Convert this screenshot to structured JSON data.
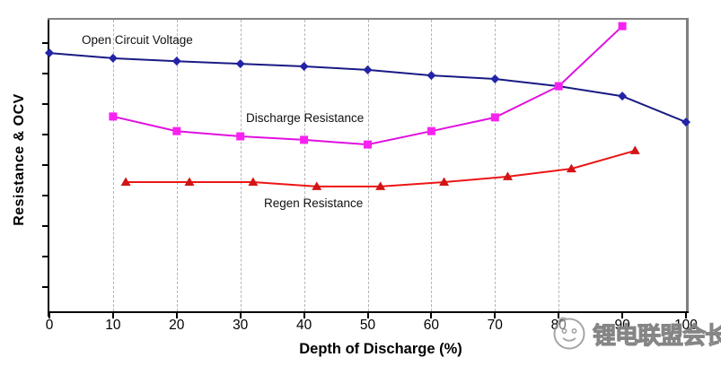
{
  "chart_data": {
    "type": "line",
    "title": "",
    "xlabel": "Depth of Discharge (%)",
    "ylabel": "Resistance & OCV",
    "xlim": [
      0,
      100
    ],
    "ylim": [
      0,
      100
    ],
    "x_ticks": [
      0,
      10,
      20,
      30,
      40,
      50,
      60,
      70,
      80,
      90,
      100
    ],
    "y_axis_numeric_labels": false,
    "y_units": "relative scale: percent of y-axis height above axis bottom (axis has unlabeled tick marks)",
    "grid": "vertical dashed gridlines only",
    "gridlines_at": [
      10,
      20,
      30,
      40,
      50,
      60,
      70,
      80
    ],
    "legend_position": "inline text annotations next to each curve",
    "series": [
      {
        "name": "Open Circuit Voltage",
        "marker": "diamond",
        "line_color": "#1a1a85",
        "marker_color": "#2323a8",
        "x": [
          0,
          10,
          20,
          30,
          40,
          50,
          60,
          70,
          80,
          90,
          100
        ],
        "y": [
          88.6,
          86.8,
          85.8,
          84.9,
          84.0,
          82.8,
          80.9,
          79.7,
          77.2,
          73.8,
          64.9
        ]
      },
      {
        "name": "Discharge Resistance",
        "marker": "square",
        "line_color": "#e010e0",
        "marker_color": "#f822f0",
        "x": [
          10,
          20,
          30,
          40,
          50,
          60,
          70,
          80,
          90
        ],
        "y": [
          66.8,
          61.8,
          60.0,
          58.8,
          57.2,
          61.8,
          66.5,
          77.2,
          97.8
        ]
      },
      {
        "name": "Regen Resistance",
        "marker": "triangle",
        "line_color": "#ed1515",
        "marker_color": "#d31414",
        "x": [
          12,
          22,
          32,
          42,
          52,
          62,
          72,
          82,
          92
        ],
        "y": [
          44.3,
          44.3,
          44.3,
          42.8,
          42.8,
          44.3,
          46.2,
          48.9,
          55.1
        ]
      }
    ]
  },
  "watermark": {
    "text": "锂电联盟会长",
    "logo": "cartoon-face-logo"
  }
}
